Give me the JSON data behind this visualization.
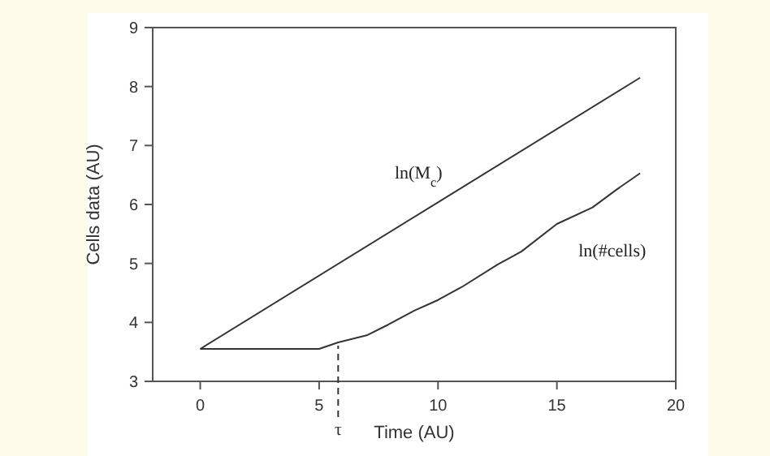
{
  "chart_data": {
    "type": "line",
    "xlabel": "Time (AU)",
    "ylabel": "Cells data (AU)",
    "xlim": [
      -2,
      20
    ],
    "ylim": [
      3,
      9
    ],
    "xticks": [
      0,
      5,
      10,
      15,
      20
    ],
    "yticks": [
      3,
      4,
      5,
      6,
      7,
      8,
      9
    ],
    "grid": false,
    "legend": false,
    "marker": "none",
    "line_style": "solid",
    "series": [
      {
        "name": "ln(M$_{c}$)",
        "color": "#333333",
        "x": [
          0,
          18.5
        ],
        "values": [
          3.55,
          8.15
        ]
      },
      {
        "name": "ln(#cells)",
        "color": "#333333",
        "x": [
          0,
          5,
          5.8,
          7,
          7.9,
          9,
          10,
          11,
          12.5,
          13.5,
          15,
          16.5,
          17.5,
          18.5
        ],
        "values": [
          3.55,
          3.55,
          3.66,
          3.78,
          3.96,
          4.2,
          4.38,
          4.6,
          4.98,
          5.2,
          5.67,
          5.95,
          6.25,
          6.53
        ]
      }
    ],
    "ref_lines": [
      {
        "axis": "x",
        "value": 5.8,
        "label": "τ",
        "line_style": "dashed",
        "color": "#333333"
      }
    ]
  }
}
